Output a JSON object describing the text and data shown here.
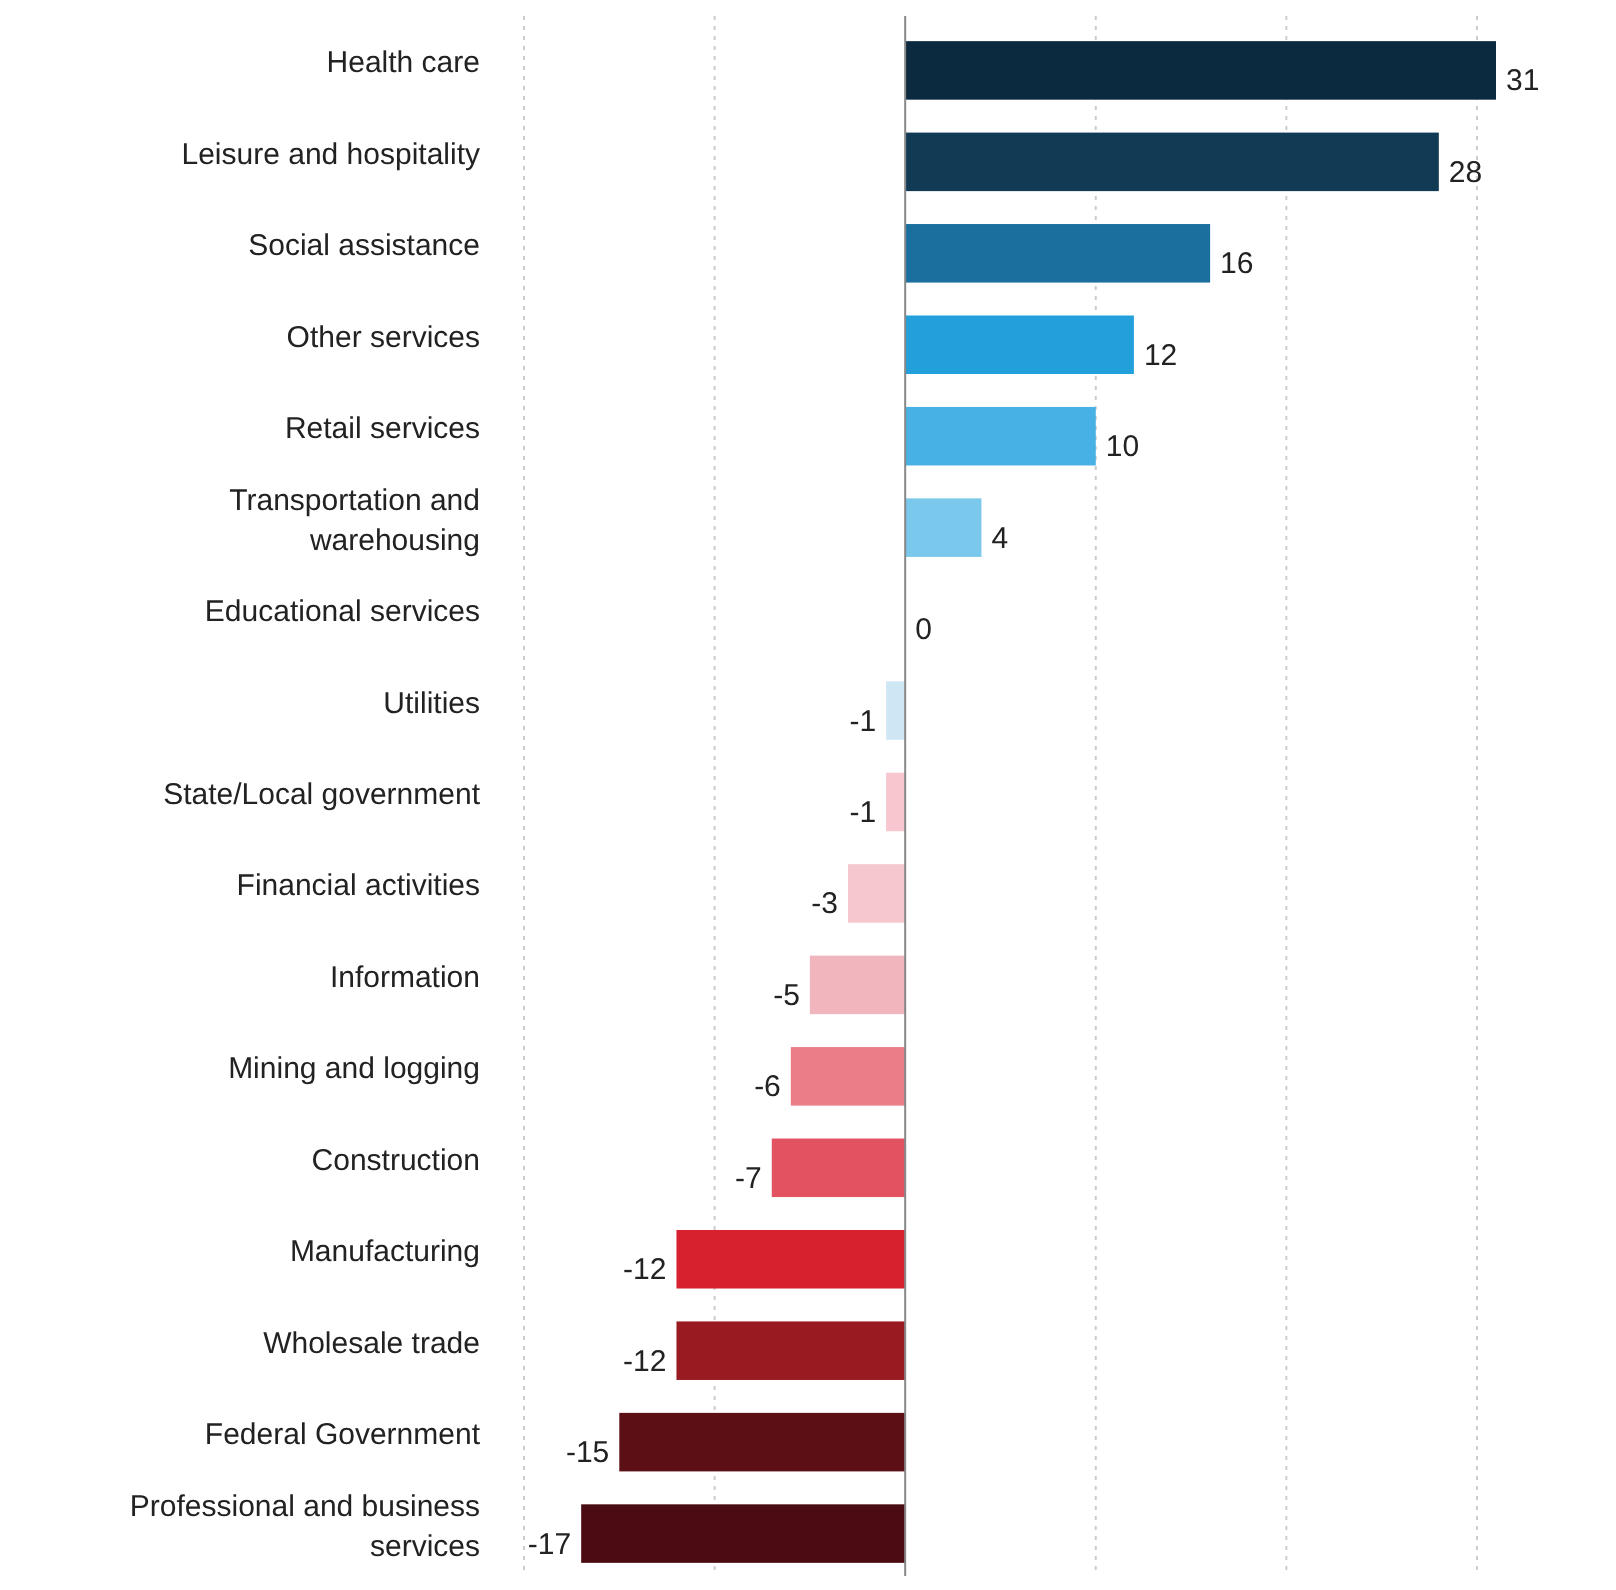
{
  "chart_data": {
    "type": "bar",
    "orientation": "horizontal",
    "data_labels": true,
    "grid": "x",
    "tick_labels": "y",
    "categories": [
      "Health care",
      "Leisure and hospitality",
      "Social assistance",
      "Other services",
      "Retail services",
      "Transportation and warehousing",
      "Educational services",
      "Utilities",
      "State/Local government",
      "Financial activities",
      "Information",
      "Mining and logging",
      "Construction",
      "Manufacturing",
      "Wholesale trade",
      "Federal Government",
      "Professional and business services"
    ],
    "values": [
      31,
      28,
      16,
      12,
      10,
      4,
      0,
      -1,
      -1,
      -3,
      -5,
      -6,
      -7,
      -12,
      -12,
      -15,
      -17
    ],
    "colors": [
      "#0b2a3f",
      "#113a54",
      "#1b6f9e",
      "#22a0dc",
      "#47b0e4",
      "#7ac8ec",
      "#7ac8ec",
      "#cfe6f5",
      "#f7c6cf",
      "#f5c8ce",
      "#f1b5bd",
      "#ea7d88",
      "#e35260",
      "#d8212f",
      "#9a1a22",
      "#5c1016",
      "#4a0b12"
    ],
    "xticks": [
      {
        "value": -20,
        "label": null
      },
      {
        "value": -10,
        "label": null
      },
      {
        "value": 0,
        "label": null
      },
      {
        "value": 10,
        "label": null
      },
      {
        "value": 20,
        "label": null
      },
      {
        "value": 30,
        "label": null
      }
    ]
  }
}
